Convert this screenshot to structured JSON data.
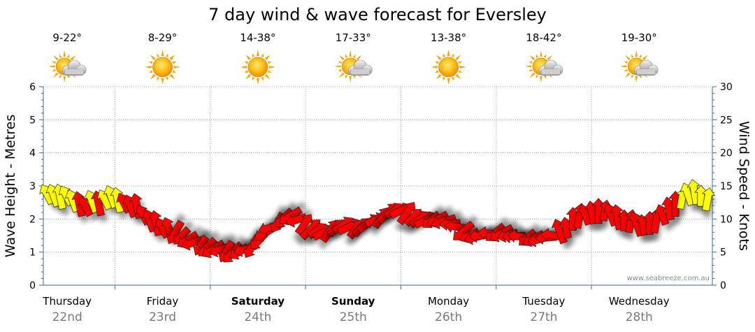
{
  "title": "7 day wind & wave forecast for Eversley",
  "credit": "www.seabreeze.com.au",
  "colors": {
    "strong_wind": "#ff0000",
    "light_wind": "#ffff00",
    "axis": "#3a6f8f",
    "grid": "#a0a0a0"
  },
  "days": [
    {
      "name": "Thursday",
      "date": "22nd",
      "temp": "9-22°",
      "weather": "partly-cloudy",
      "bold": false
    },
    {
      "name": "Friday",
      "date": "23rd",
      "temp": "8-29°",
      "weather": "sunny",
      "bold": false
    },
    {
      "name": "Saturday",
      "date": "24th",
      "temp": "14-38°",
      "weather": "sunny",
      "bold": true
    },
    {
      "name": "Sunday",
      "date": "25th",
      "temp": "17-33°",
      "weather": "partly-cloudy",
      "bold": true
    },
    {
      "name": "Monday",
      "date": "26th",
      "temp": "13-38°",
      "weather": "sunny",
      "bold": false
    },
    {
      "name": "Tuesday",
      "date": "27th",
      "temp": "18-42°",
      "weather": "partly-cloudy",
      "bold": false
    },
    {
      "name": "Wednesday",
      "date": "28th",
      "temp": "19-30°",
      "weather": "partly-cloudy",
      "bold": false
    }
  ],
  "chart_data": {
    "type": "line",
    "title": "7 day wind & wave forecast for Eversley",
    "ylabel_left": "Wave Height - Metres",
    "ylabel_right": "Wind Speed - Knots",
    "ylim_left": [
      0,
      6
    ],
    "ylim_right": [
      0,
      30
    ],
    "yticks_left": [
      "0",
      "1",
      "2",
      "3",
      "4",
      "5",
      "6"
    ],
    "yticks_right": [
      "0",
      "5",
      "10",
      "15",
      "20",
      "25",
      "30"
    ],
    "grid": true,
    "series": [
      {
        "values": [
          13.6,
          13.4,
          13.2,
          13.4,
          12.6,
          12.1,
          11.8,
          12.5,
          12.2,
          12.8,
          13.2,
          12.7,
          12.3,
          11.8,
          11.8,
          10.5,
          9.6,
          9.2,
          8.5,
          8.4,
          8.1,
          7.5,
          6.9,
          6.5,
          6.1,
          5.8,
          5.5,
          5.4,
          5.2,
          5.0,
          5.1,
          5.5,
          6.0,
          6.8,
          7.9,
          8.8,
          9.6,
          10.2,
          10.5,
          9.9,
          9.1,
          8.4,
          8.2,
          7.9,
          8.1,
          8.6,
          9.0,
          8.8,
          8.4,
          8.7,
          9.3,
          9.8,
          10.1,
          10.8,
          11.2,
          11.2,
          10.8,
          10.2,
          9.9,
          9.8,
          9.9,
          10.0,
          9.7,
          9.3,
          8.8,
          8.2,
          7.6,
          7.3,
          7.5,
          7.8,
          8.0,
          7.9,
          7.6,
          7.4,
          7.3,
          7.2,
          7.1,
          7.0,
          7.2,
          7.5,
          8.0,
          8.5,
          9.8,
          10.3,
          10.5,
          10.8,
          11.0,
          11.1,
          10.5,
          10.1,
          9.6,
          9.5,
          9.1,
          8.9,
          9.2,
          9.6,
          10.5,
          11.4,
          12.1,
          12.9,
          13.6,
          13.9,
          13.3,
          12.8
        ]
      }
    ]
  }
}
